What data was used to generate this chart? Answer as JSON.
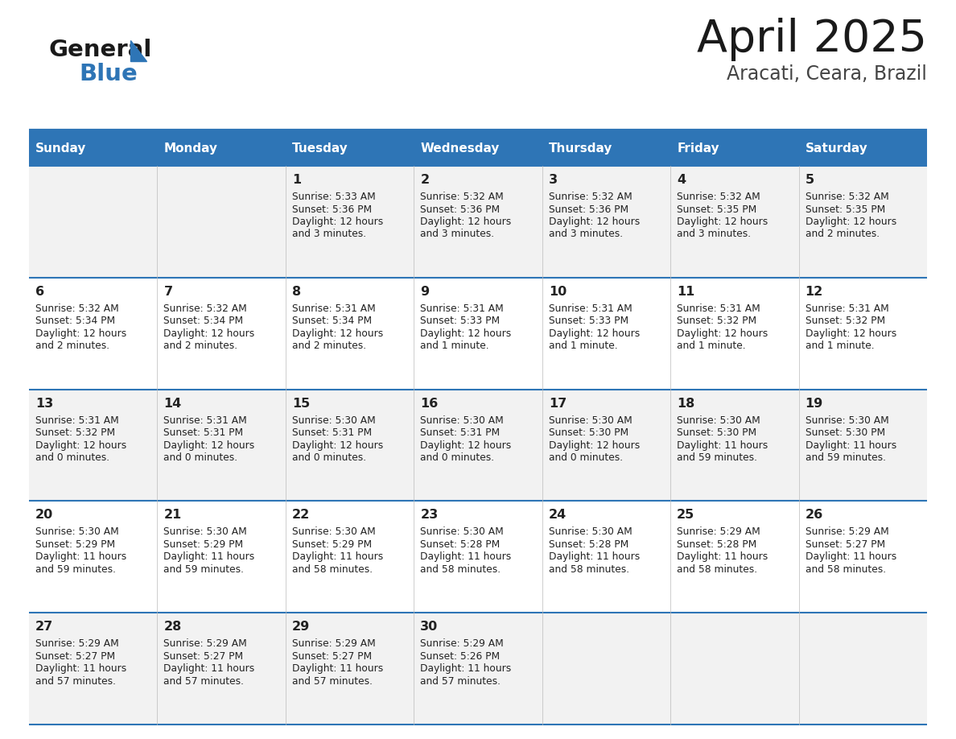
{
  "title": "April 2025",
  "subtitle": "Aracati, Ceara, Brazil",
  "header_color": "#2E75B6",
  "header_text_color": "#FFFFFF",
  "days_of_week": [
    "Sunday",
    "Monday",
    "Tuesday",
    "Wednesday",
    "Thursday",
    "Friday",
    "Saturday"
  ],
  "row_bg_odd": "#F2F2F2",
  "row_bg_even": "#FFFFFF",
  "divider_color": "#2E75B6",
  "text_color": "#222222",
  "calendar_data": [
    [
      {
        "day": "",
        "sunrise": "",
        "sunset": "",
        "daylight": ""
      },
      {
        "day": "",
        "sunrise": "",
        "sunset": "",
        "daylight": ""
      },
      {
        "day": "1",
        "sunrise": "5:33 AM",
        "sunset": "5:36 PM",
        "daylight": "12 hours and 3 minutes."
      },
      {
        "day": "2",
        "sunrise": "5:32 AM",
        "sunset": "5:36 PM",
        "daylight": "12 hours and 3 minutes."
      },
      {
        "day": "3",
        "sunrise": "5:32 AM",
        "sunset": "5:36 PM",
        "daylight": "12 hours and 3 minutes."
      },
      {
        "day": "4",
        "sunrise": "5:32 AM",
        "sunset": "5:35 PM",
        "daylight": "12 hours and 3 minutes."
      },
      {
        "day": "5",
        "sunrise": "5:32 AM",
        "sunset": "5:35 PM",
        "daylight": "12 hours and 2 minutes."
      }
    ],
    [
      {
        "day": "6",
        "sunrise": "5:32 AM",
        "sunset": "5:34 PM",
        "daylight": "12 hours and 2 minutes."
      },
      {
        "day": "7",
        "sunrise": "5:32 AM",
        "sunset": "5:34 PM",
        "daylight": "12 hours and 2 minutes."
      },
      {
        "day": "8",
        "sunrise": "5:31 AM",
        "sunset": "5:34 PM",
        "daylight": "12 hours and 2 minutes."
      },
      {
        "day": "9",
        "sunrise": "5:31 AM",
        "sunset": "5:33 PM",
        "daylight": "12 hours and 1 minute."
      },
      {
        "day": "10",
        "sunrise": "5:31 AM",
        "sunset": "5:33 PM",
        "daylight": "12 hours and 1 minute."
      },
      {
        "day": "11",
        "sunrise": "5:31 AM",
        "sunset": "5:32 PM",
        "daylight": "12 hours and 1 minute."
      },
      {
        "day": "12",
        "sunrise": "5:31 AM",
        "sunset": "5:32 PM",
        "daylight": "12 hours and 1 minute."
      }
    ],
    [
      {
        "day": "13",
        "sunrise": "5:31 AM",
        "sunset": "5:32 PM",
        "daylight": "12 hours and 0 minutes."
      },
      {
        "day": "14",
        "sunrise": "5:31 AM",
        "sunset": "5:31 PM",
        "daylight": "12 hours and 0 minutes."
      },
      {
        "day": "15",
        "sunrise": "5:30 AM",
        "sunset": "5:31 PM",
        "daylight": "12 hours and 0 minutes."
      },
      {
        "day": "16",
        "sunrise": "5:30 AM",
        "sunset": "5:31 PM",
        "daylight": "12 hours and 0 minutes."
      },
      {
        "day": "17",
        "sunrise": "5:30 AM",
        "sunset": "5:30 PM",
        "daylight": "12 hours and 0 minutes."
      },
      {
        "day": "18",
        "sunrise": "5:30 AM",
        "sunset": "5:30 PM",
        "daylight": "11 hours and 59 minutes."
      },
      {
        "day": "19",
        "sunrise": "5:30 AM",
        "sunset": "5:30 PM",
        "daylight": "11 hours and 59 minutes."
      }
    ],
    [
      {
        "day": "20",
        "sunrise": "5:30 AM",
        "sunset": "5:29 PM",
        "daylight": "11 hours and 59 minutes."
      },
      {
        "day": "21",
        "sunrise": "5:30 AM",
        "sunset": "5:29 PM",
        "daylight": "11 hours and 59 minutes."
      },
      {
        "day": "22",
        "sunrise": "5:30 AM",
        "sunset": "5:29 PM",
        "daylight": "11 hours and 58 minutes."
      },
      {
        "day": "23",
        "sunrise": "5:30 AM",
        "sunset": "5:28 PM",
        "daylight": "11 hours and 58 minutes."
      },
      {
        "day": "24",
        "sunrise": "5:30 AM",
        "sunset": "5:28 PM",
        "daylight": "11 hours and 58 minutes."
      },
      {
        "day": "25",
        "sunrise": "5:29 AM",
        "sunset": "5:28 PM",
        "daylight": "11 hours and 58 minutes."
      },
      {
        "day": "26",
        "sunrise": "5:29 AM",
        "sunset": "5:27 PM",
        "daylight": "11 hours and 58 minutes."
      }
    ],
    [
      {
        "day": "27",
        "sunrise": "5:29 AM",
        "sunset": "5:27 PM",
        "daylight": "11 hours and 57 minutes."
      },
      {
        "day": "28",
        "sunrise": "5:29 AM",
        "sunset": "5:27 PM",
        "daylight": "11 hours and 57 minutes."
      },
      {
        "day": "29",
        "sunrise": "5:29 AM",
        "sunset": "5:27 PM",
        "daylight": "11 hours and 57 minutes."
      },
      {
        "day": "30",
        "sunrise": "5:29 AM",
        "sunset": "5:26 PM",
        "daylight": "11 hours and 57 minutes."
      },
      {
        "day": "",
        "sunrise": "",
        "sunset": "",
        "daylight": ""
      },
      {
        "day": "",
        "sunrise": "",
        "sunset": "",
        "daylight": ""
      },
      {
        "day": "",
        "sunrise": "",
        "sunset": "",
        "daylight": ""
      }
    ]
  ]
}
